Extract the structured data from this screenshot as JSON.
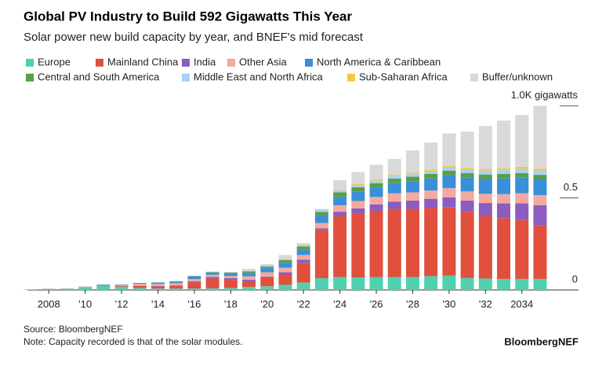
{
  "chart_data": {
    "type": "stacked-bar",
    "title": "Global PV Industry to Build 592 Gigawatts This Year",
    "subtitle": "Solar power new build capacity by year, and BNEF's mid forecast",
    "source": "Source: BloombergNEF",
    "note": "Note: Capacity recorded is that of the solar modules.",
    "logo": "BloombergNEF",
    "categories": [
      null,
      "2008",
      null,
      "'10",
      null,
      "'12",
      null,
      "'14",
      null,
      "'16",
      null,
      "'18",
      null,
      "'20",
      null,
      "'22",
      null,
      "'24",
      null,
      "'26",
      null,
      "'28",
      null,
      "'30",
      null,
      "'32",
      null,
      "2034",
      null
    ],
    "ylim": [
      0,
      1.0
    ],
    "yticks": [
      0,
      0.5,
      {
        "value": 1.0,
        "label": "1.0K gigawatts"
      }
    ],
    "series": [
      {
        "name": "Europe",
        "color": "#4fd1b0",
        "values": [
          0.002,
          0.005,
          0.006,
          0.013,
          0.022,
          0.017,
          0.011,
          0.008,
          0.008,
          0.008,
          0.009,
          0.011,
          0.017,
          0.02,
          0.028,
          0.04,
          0.064,
          0.07,
          0.068,
          0.07,
          0.07,
          0.07,
          0.075,
          0.078,
          0.065,
          0.062,
          0.06,
          0.06,
          0.06
        ]
      },
      {
        "name": "Mainland China",
        "color": "#e0503c",
        "values": [
          0,
          0,
          0,
          0.001,
          0.003,
          0.004,
          0.011,
          0.011,
          0.015,
          0.034,
          0.053,
          0.044,
          0.03,
          0.048,
          0.055,
          0.106,
          0.26,
          0.33,
          0.345,
          0.36,
          0.37,
          0.37,
          0.37,
          0.37,
          0.36,
          0.34,
          0.33,
          0.32,
          0.29
        ]
      },
      {
        "name": "India",
        "color": "#8c5cbf",
        "values": [
          0,
          0,
          0,
          0,
          0,
          0,
          0.001,
          0.002,
          0.002,
          0.005,
          0.009,
          0.009,
          0.009,
          0.004,
          0.013,
          0.018,
          0.01,
          0.025,
          0.03,
          0.035,
          0.04,
          0.045,
          0.05,
          0.055,
          0.06,
          0.07,
          0.08,
          0.09,
          0.11
        ]
      },
      {
        "name": "Other Asia",
        "color": "#f4a9a0",
        "values": [
          0.001,
          0.001,
          0.001,
          0.002,
          0.002,
          0.004,
          0.01,
          0.012,
          0.012,
          0.012,
          0.011,
          0.012,
          0.018,
          0.024,
          0.025,
          0.026,
          0.03,
          0.035,
          0.04,
          0.04,
          0.045,
          0.045,
          0.045,
          0.05,
          0.05,
          0.05,
          0.05,
          0.055,
          0.055
        ]
      },
      {
        "name": "North America & Caribbean",
        "color": "#3a8fd9",
        "values": [
          0,
          0.001,
          0.001,
          0.002,
          0.003,
          0.004,
          0.005,
          0.007,
          0.009,
          0.015,
          0.012,
          0.013,
          0.019,
          0.022,
          0.027,
          0.028,
          0.04,
          0.045,
          0.05,
          0.05,
          0.055,
          0.06,
          0.065,
          0.07,
          0.075,
          0.08,
          0.085,
          0.085,
          0.085
        ]
      },
      {
        "name": "Central and South America",
        "color": "#5a9e4b",
        "values": [
          0,
          0,
          0,
          0,
          0,
          0,
          0,
          0.001,
          0.001,
          0.002,
          0.003,
          0.005,
          0.008,
          0.009,
          0.014,
          0.018,
          0.02,
          0.025,
          0.025,
          0.025,
          0.025,
          0.025,
          0.025,
          0.025,
          0.025,
          0.025,
          0.025,
          0.025,
          0.025
        ]
      },
      {
        "name": "Middle East and North Africa",
        "color": "#a8d3f0",
        "values": [
          0,
          0,
          0,
          0,
          0,
          0,
          0,
          0.001,
          0.001,
          0.001,
          0.002,
          0.003,
          0.004,
          0.005,
          0.006,
          0.008,
          0.01,
          0.012,
          0.012,
          0.014,
          0.015,
          0.016,
          0.017,
          0.018,
          0.02,
          0.021,
          0.022,
          0.023,
          0.024
        ]
      },
      {
        "name": "Sub-Saharan Africa",
        "color": "#f5c842",
        "values": [
          0,
          0,
          0,
          0,
          0,
          0,
          0,
          0,
          0.001,
          0,
          0.001,
          0.001,
          0.002,
          0.002,
          0.002,
          0.003,
          0.003,
          0.004,
          0.005,
          0.006,
          0.006,
          0.007,
          0.007,
          0.008,
          0.008,
          0.009,
          0.009,
          0.01,
          0.01
        ]
      },
      {
        "name": "Buffer/unknown",
        "color": "#d9d9d9",
        "values": [
          0,
          0,
          0,
          0,
          0,
          0,
          0,
          0,
          0,
          0,
          0,
          0,
          0.008,
          0.006,
          0.02,
          0.008,
          0.003,
          0.05,
          0.065,
          0.08,
          0.085,
          0.12,
          0.146,
          0.176,
          0.197,
          0.233,
          0.259,
          0.282,
          0.341
        ]
      }
    ]
  }
}
